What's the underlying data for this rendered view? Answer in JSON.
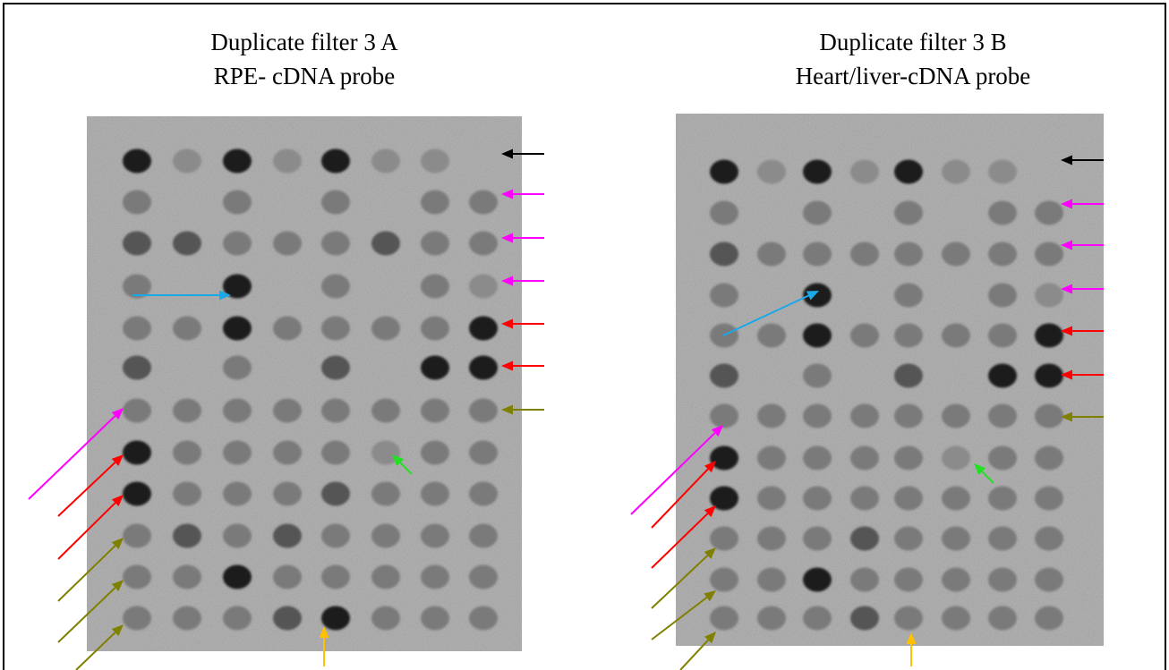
{
  "panels": [
    {
      "title": [
        "Duplicate filter 3 A",
        "RPE- cDNA probe"
      ]
    },
    {
      "title": [
        "Duplicate filter 3 B",
        "Heart/liver-cDNA probe"
      ]
    }
  ]
}
